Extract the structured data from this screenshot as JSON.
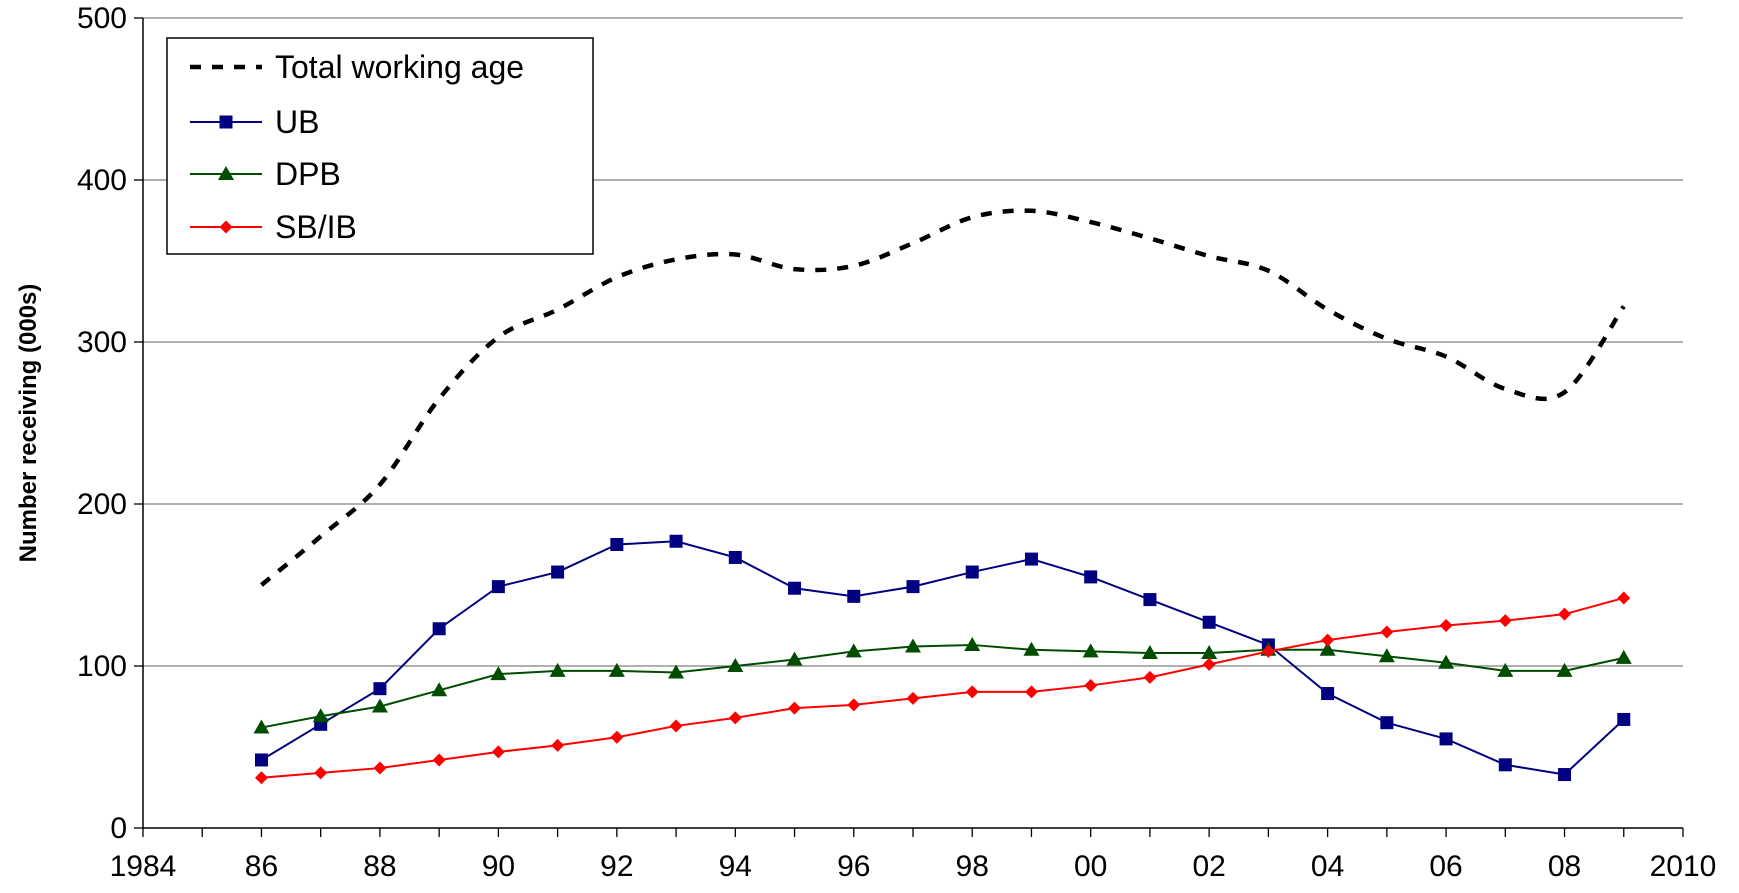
{
  "chart_data": {
    "type": "line",
    "title": "",
    "xlabel": "",
    "ylabel": "Number receiving (000s)",
    "xlim": [
      1984,
      2010
    ],
    "ylim": [
      0,
      500
    ],
    "grid": "horizontal",
    "legend_position": "top-left",
    "y_ticks": [
      {
        "value": 0,
        "label": "0"
      },
      {
        "value": 100,
        "label": "100"
      },
      {
        "value": 200,
        "label": "200"
      },
      {
        "value": 300,
        "label": "300"
      },
      {
        "value": 400,
        "label": "400"
      },
      {
        "value": 500,
        "label": "500"
      }
    ],
    "x_ticks": [
      {
        "value": 1984,
        "label": "1984"
      },
      {
        "value": 1986,
        "label": "86"
      },
      {
        "value": 1988,
        "label": "88"
      },
      {
        "value": 1990,
        "label": "90"
      },
      {
        "value": 1992,
        "label": "92"
      },
      {
        "value": 1994,
        "label": "94"
      },
      {
        "value": 1996,
        "label": "96"
      },
      {
        "value": 1998,
        "label": "98"
      },
      {
        "value": 2000,
        "label": "00"
      },
      {
        "value": 2002,
        "label": "02"
      },
      {
        "value": 2004,
        "label": "04"
      },
      {
        "value": 2006,
        "label": "06"
      },
      {
        "value": 2008,
        "label": "08"
      },
      {
        "value": 2010,
        "label": "2010"
      }
    ],
    "x": [
      1986,
      1987,
      1988,
      1989,
      1990,
      1991,
      1992,
      1993,
      1994,
      1995,
      1996,
      1997,
      1998,
      1999,
      2000,
      2001,
      2002,
      2003,
      2004,
      2005,
      2006,
      2007,
      2008,
      2009
    ],
    "series": [
      {
        "name": "Total working age",
        "color": "#000000",
        "style": "dashed",
        "marker": "none",
        "values": [
          150,
          180,
          212,
          265,
          303,
          320,
          340,
          351,
          354,
          345,
          347,
          361,
          377,
          381,
          374,
          364,
          353,
          344,
          320,
          302,
          291,
          271,
          269,
          322
        ]
      },
      {
        "name": "UB",
        "color": "#000080",
        "style": "solid",
        "marker": "square",
        "values": [
          42,
          64,
          86,
          123,
          149,
          158,
          175,
          177,
          167,
          148,
          143,
          149,
          158,
          166,
          155,
          141,
          127,
          113,
          83,
          65,
          55,
          39,
          33,
          67
        ]
      },
      {
        "name": "DPB",
        "color": "#004d00",
        "style": "solid",
        "marker": "triangle",
        "values": [
          62,
          69,
          75,
          85,
          95,
          97,
          97,
          96,
          100,
          104,
          109,
          112,
          113,
          110,
          109,
          108,
          108,
          110,
          110,
          106,
          102,
          97,
          97,
          105
        ]
      },
      {
        "name": "SB/IB",
        "color": "#ff0000",
        "style": "solid",
        "marker": "diamond",
        "values": [
          31,
          34,
          37,
          42,
          47,
          51,
          56,
          63,
          68,
          74,
          76,
          80,
          84,
          84,
          88,
          93,
          101,
          109,
          116,
          121,
          125,
          128,
          132,
          142
        ]
      }
    ]
  }
}
